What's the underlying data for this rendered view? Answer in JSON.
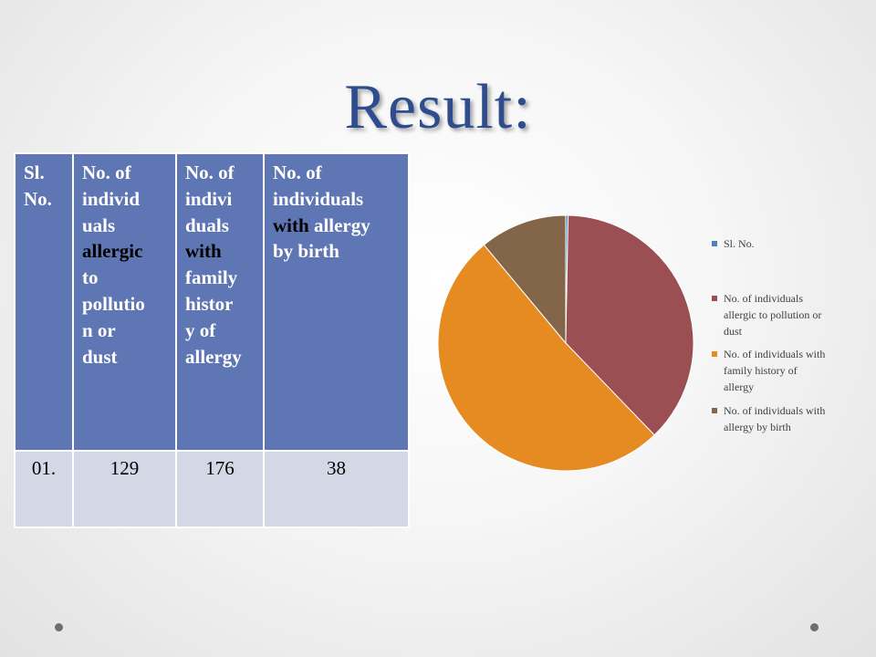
{
  "slide": {
    "title": "Result:"
  },
  "table": {
    "headers": [
      "Sl. No.",
      "No. of individuals allergic to pollution or dust",
      "No. of individuals with family history of allergy",
      "No. of individuals with allergy by birth"
    ],
    "header_lines": [
      [
        "Sl.",
        "No."
      ],
      [
        "No. of",
        "individ",
        "uals",
        "allergic",
        "to",
        "pollutio",
        "n or",
        "dust"
      ],
      [
        "No. of",
        "indivi",
        "duals",
        "with",
        "family",
        "histor",
        "y of",
        "allergy"
      ],
      [
        "No. of",
        "individuals",
        "with allergy",
        "by birth"
      ]
    ],
    "row": [
      "01.",
      "129",
      "176",
      "38"
    ]
  },
  "chart_data": {
    "type": "pie",
    "categories": [
      "Sl. No.",
      "No. of individuals allergic to pollution or dust",
      "No. of individuals with family history of allergy",
      "No. of individuals with allergy by birth"
    ],
    "values": [
      1,
      129,
      176,
      38
    ],
    "colors": [
      "#4f81bd",
      "#9b4f52",
      "#e68a22",
      "#836649"
    ],
    "legend": {
      "position": "right",
      "entries": [
        [
          "Sl. No."
        ],
        [
          "No. of individuals",
          "allergic to pollution or",
          "dust"
        ],
        [
          "No. of individuals with",
          "family history of",
          "allergy"
        ],
        [
          "No. of individuals with",
          "allergy by birth"
        ]
      ]
    }
  }
}
